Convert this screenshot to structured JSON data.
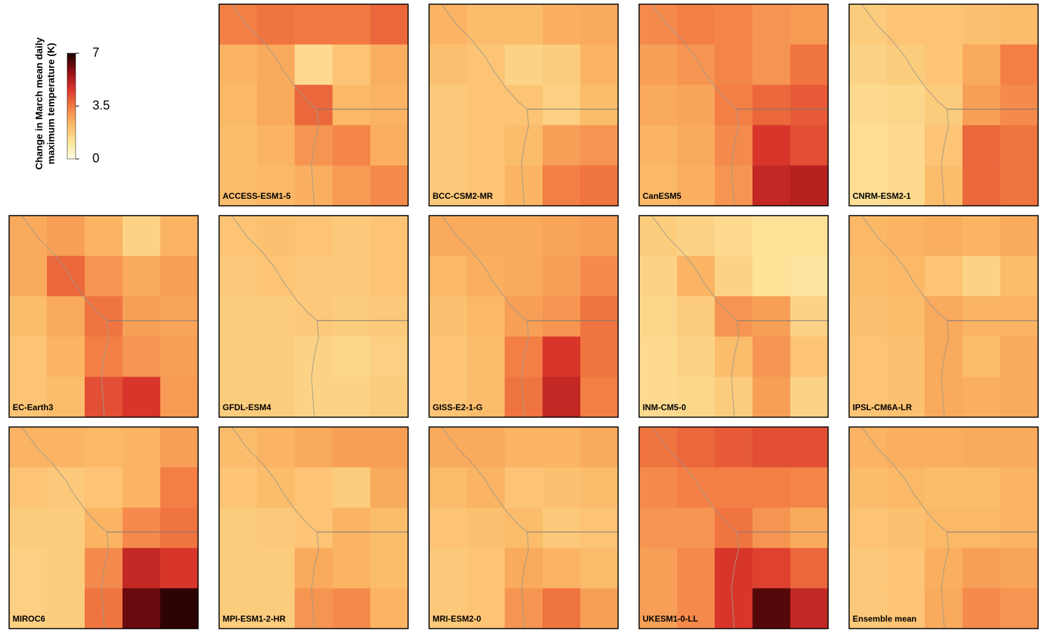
{
  "legend": {
    "title_lines": [
      "Change in March mean daily",
      "maximum temperature (K)"
    ],
    "lim": [
      0,
      7
    ],
    "ticks": [
      0,
      3.5,
      7
    ],
    "colors": [
      "#fffde2",
      "#fde39a",
      "#fbb865",
      "#f27a42",
      "#d8322a",
      "#8c0f14",
      "#1a0000"
    ]
  },
  "panels": [
    {
      "label": "ACCESS-ESM1-5",
      "values": [
        [
          3.4,
          3.6,
          3.5,
          3.5,
          3.8
        ],
        [
          2.4,
          2.6,
          1.4,
          2.0,
          2.5
        ],
        [
          2.3,
          2.6,
          3.8,
          2.3,
          2.4
        ],
        [
          2.2,
          2.4,
          3.0,
          3.3,
          2.5
        ],
        [
          2.2,
          2.3,
          2.5,
          2.9,
          3.2
        ]
      ]
    },
    {
      "label": "BCC-CSM2-MR",
      "values": [
        [
          2.4,
          2.2,
          2.2,
          2.5,
          2.6
        ],
        [
          2.1,
          2.0,
          1.6,
          1.8,
          2.4
        ],
        [
          1.9,
          2.0,
          2.0,
          1.7,
          2.2
        ],
        [
          1.9,
          2.0,
          2.2,
          2.8,
          3.0
        ],
        [
          1.9,
          2.0,
          2.4,
          3.4,
          3.6
        ]
      ]
    },
    {
      "label": "CanESM5",
      "values": [
        [
          3.2,
          3.4,
          3.3,
          3.0,
          2.9
        ],
        [
          2.8,
          3.0,
          3.3,
          3.0,
          3.6
        ],
        [
          2.6,
          2.7,
          3.4,
          3.8,
          4.0
        ],
        [
          2.4,
          2.6,
          3.2,
          4.6,
          4.2
        ],
        [
          2.3,
          2.5,
          3.0,
          5.0,
          5.2
        ]
      ]
    },
    {
      "label": "CNRM-ESM2-1",
      "values": [
        [
          1.8,
          2.0,
          2.0,
          2.1,
          2.2
        ],
        [
          1.6,
          1.8,
          2.0,
          2.6,
          3.4
        ],
        [
          1.4,
          1.5,
          1.8,
          2.8,
          3.2
        ],
        [
          1.3,
          1.4,
          2.0,
          3.8,
          3.6
        ],
        [
          1.3,
          1.4,
          2.2,
          3.8,
          3.6
        ]
      ]
    },
    {
      "label": "EC-Earth3",
      "values": [
        [
          2.6,
          2.8,
          2.4,
          1.6,
          2.4
        ],
        [
          2.6,
          3.8,
          3.0,
          2.6,
          2.8
        ],
        [
          2.2,
          2.6,
          3.6,
          2.8,
          2.7
        ],
        [
          2.0,
          2.4,
          3.4,
          3.0,
          2.8
        ],
        [
          2.0,
          2.2,
          4.2,
          4.6,
          2.9
        ]
      ]
    },
    {
      "label": "GFDL-ESM4",
      "values": [
        [
          2.0,
          2.1,
          2.0,
          1.9,
          2.0
        ],
        [
          1.9,
          2.0,
          1.9,
          1.9,
          2.0
        ],
        [
          1.8,
          1.8,
          1.9,
          1.8,
          1.9
        ],
        [
          1.8,
          1.8,
          1.6,
          1.5,
          1.7
        ],
        [
          1.8,
          1.8,
          1.6,
          1.6,
          1.8
        ]
      ]
    },
    {
      "label": "GISS-E2-1-G",
      "values": [
        [
          2.6,
          2.6,
          2.6,
          2.7,
          2.8
        ],
        [
          2.3,
          2.5,
          2.6,
          2.8,
          3.2
        ],
        [
          2.1,
          2.3,
          2.8,
          3.0,
          3.6
        ],
        [
          2.0,
          2.2,
          3.4,
          4.6,
          3.6
        ],
        [
          2.0,
          2.2,
          3.6,
          5.0,
          3.4
        ]
      ]
    },
    {
      "label": "INM-CM5-0",
      "values": [
        [
          1.8,
          1.6,
          1.4,
          1.2,
          1.2
        ],
        [
          1.6,
          2.4,
          1.6,
          1.2,
          1.1
        ],
        [
          1.5,
          1.8,
          3.0,
          2.8,
          1.6
        ],
        [
          1.4,
          1.6,
          2.2,
          3.0,
          2.0
        ],
        [
          1.4,
          1.5,
          1.8,
          2.8,
          1.6
        ]
      ]
    },
    {
      "label": "IPSL-CM6A-LR",
      "values": [
        [
          2.3,
          2.4,
          2.5,
          2.4,
          2.6
        ],
        [
          2.2,
          2.3,
          2.0,
          1.6,
          2.2
        ],
        [
          2.1,
          2.2,
          2.6,
          2.4,
          2.4
        ],
        [
          2.0,
          2.1,
          2.6,
          2.2,
          2.6
        ],
        [
          2.0,
          2.1,
          2.6,
          2.5,
          2.6
        ]
      ]
    },
    {
      "label": "MIROC6",
      "values": [
        [
          2.4,
          2.4,
          2.3,
          2.4,
          2.8
        ],
        [
          2.0,
          1.9,
          2.0,
          2.4,
          3.4
        ],
        [
          1.8,
          1.8,
          2.4,
          3.2,
          3.6
        ],
        [
          1.7,
          1.8,
          3.2,
          5.0,
          4.6
        ],
        [
          1.7,
          1.8,
          3.6,
          6.2,
          6.8
        ]
      ]
    },
    {
      "label": "MPI-ESM1-2-HR",
      "values": [
        [
          2.2,
          2.4,
          2.6,
          2.8,
          2.8
        ],
        [
          2.0,
          2.2,
          2.0,
          1.8,
          2.6
        ],
        [
          1.8,
          1.9,
          2.0,
          2.4,
          2.2
        ],
        [
          1.8,
          1.8,
          2.6,
          2.4,
          2.2
        ],
        [
          1.8,
          1.8,
          3.0,
          3.2,
          2.4
        ]
      ]
    },
    {
      "label": "MRI-ESM2-0",
      "values": [
        [
          2.6,
          2.6,
          2.4,
          2.4,
          2.6
        ],
        [
          2.2,
          2.4,
          2.0,
          2.1,
          2.2
        ],
        [
          2.0,
          2.1,
          2.2,
          1.9,
          2.0
        ],
        [
          1.9,
          2.0,
          2.6,
          2.4,
          2.2
        ],
        [
          1.9,
          2.0,
          3.0,
          3.6,
          2.8
        ]
      ]
    },
    {
      "label": "UKESM1-0-LL",
      "values": [
        [
          3.6,
          3.8,
          4.0,
          4.2,
          4.2
        ],
        [
          3.2,
          3.4,
          3.4,
          3.4,
          3.3
        ],
        [
          3.0,
          3.0,
          3.6,
          3.0,
          2.6
        ],
        [
          2.8,
          3.2,
          4.6,
          4.4,
          3.8
        ],
        [
          2.8,
          3.2,
          4.6,
          6.4,
          5.0
        ]
      ]
    },
    {
      "label": "Ensemble mean",
      "values": [
        [
          2.4,
          2.5,
          2.5,
          2.6,
          2.6
        ],
        [
          2.2,
          2.3,
          2.2,
          2.2,
          2.4
        ],
        [
          2.0,
          2.1,
          2.3,
          2.3,
          2.4
        ],
        [
          1.9,
          2.0,
          2.5,
          2.8,
          2.7
        ],
        [
          1.9,
          2.0,
          2.6,
          3.2,
          3.0
        ]
      ]
    }
  ]
}
